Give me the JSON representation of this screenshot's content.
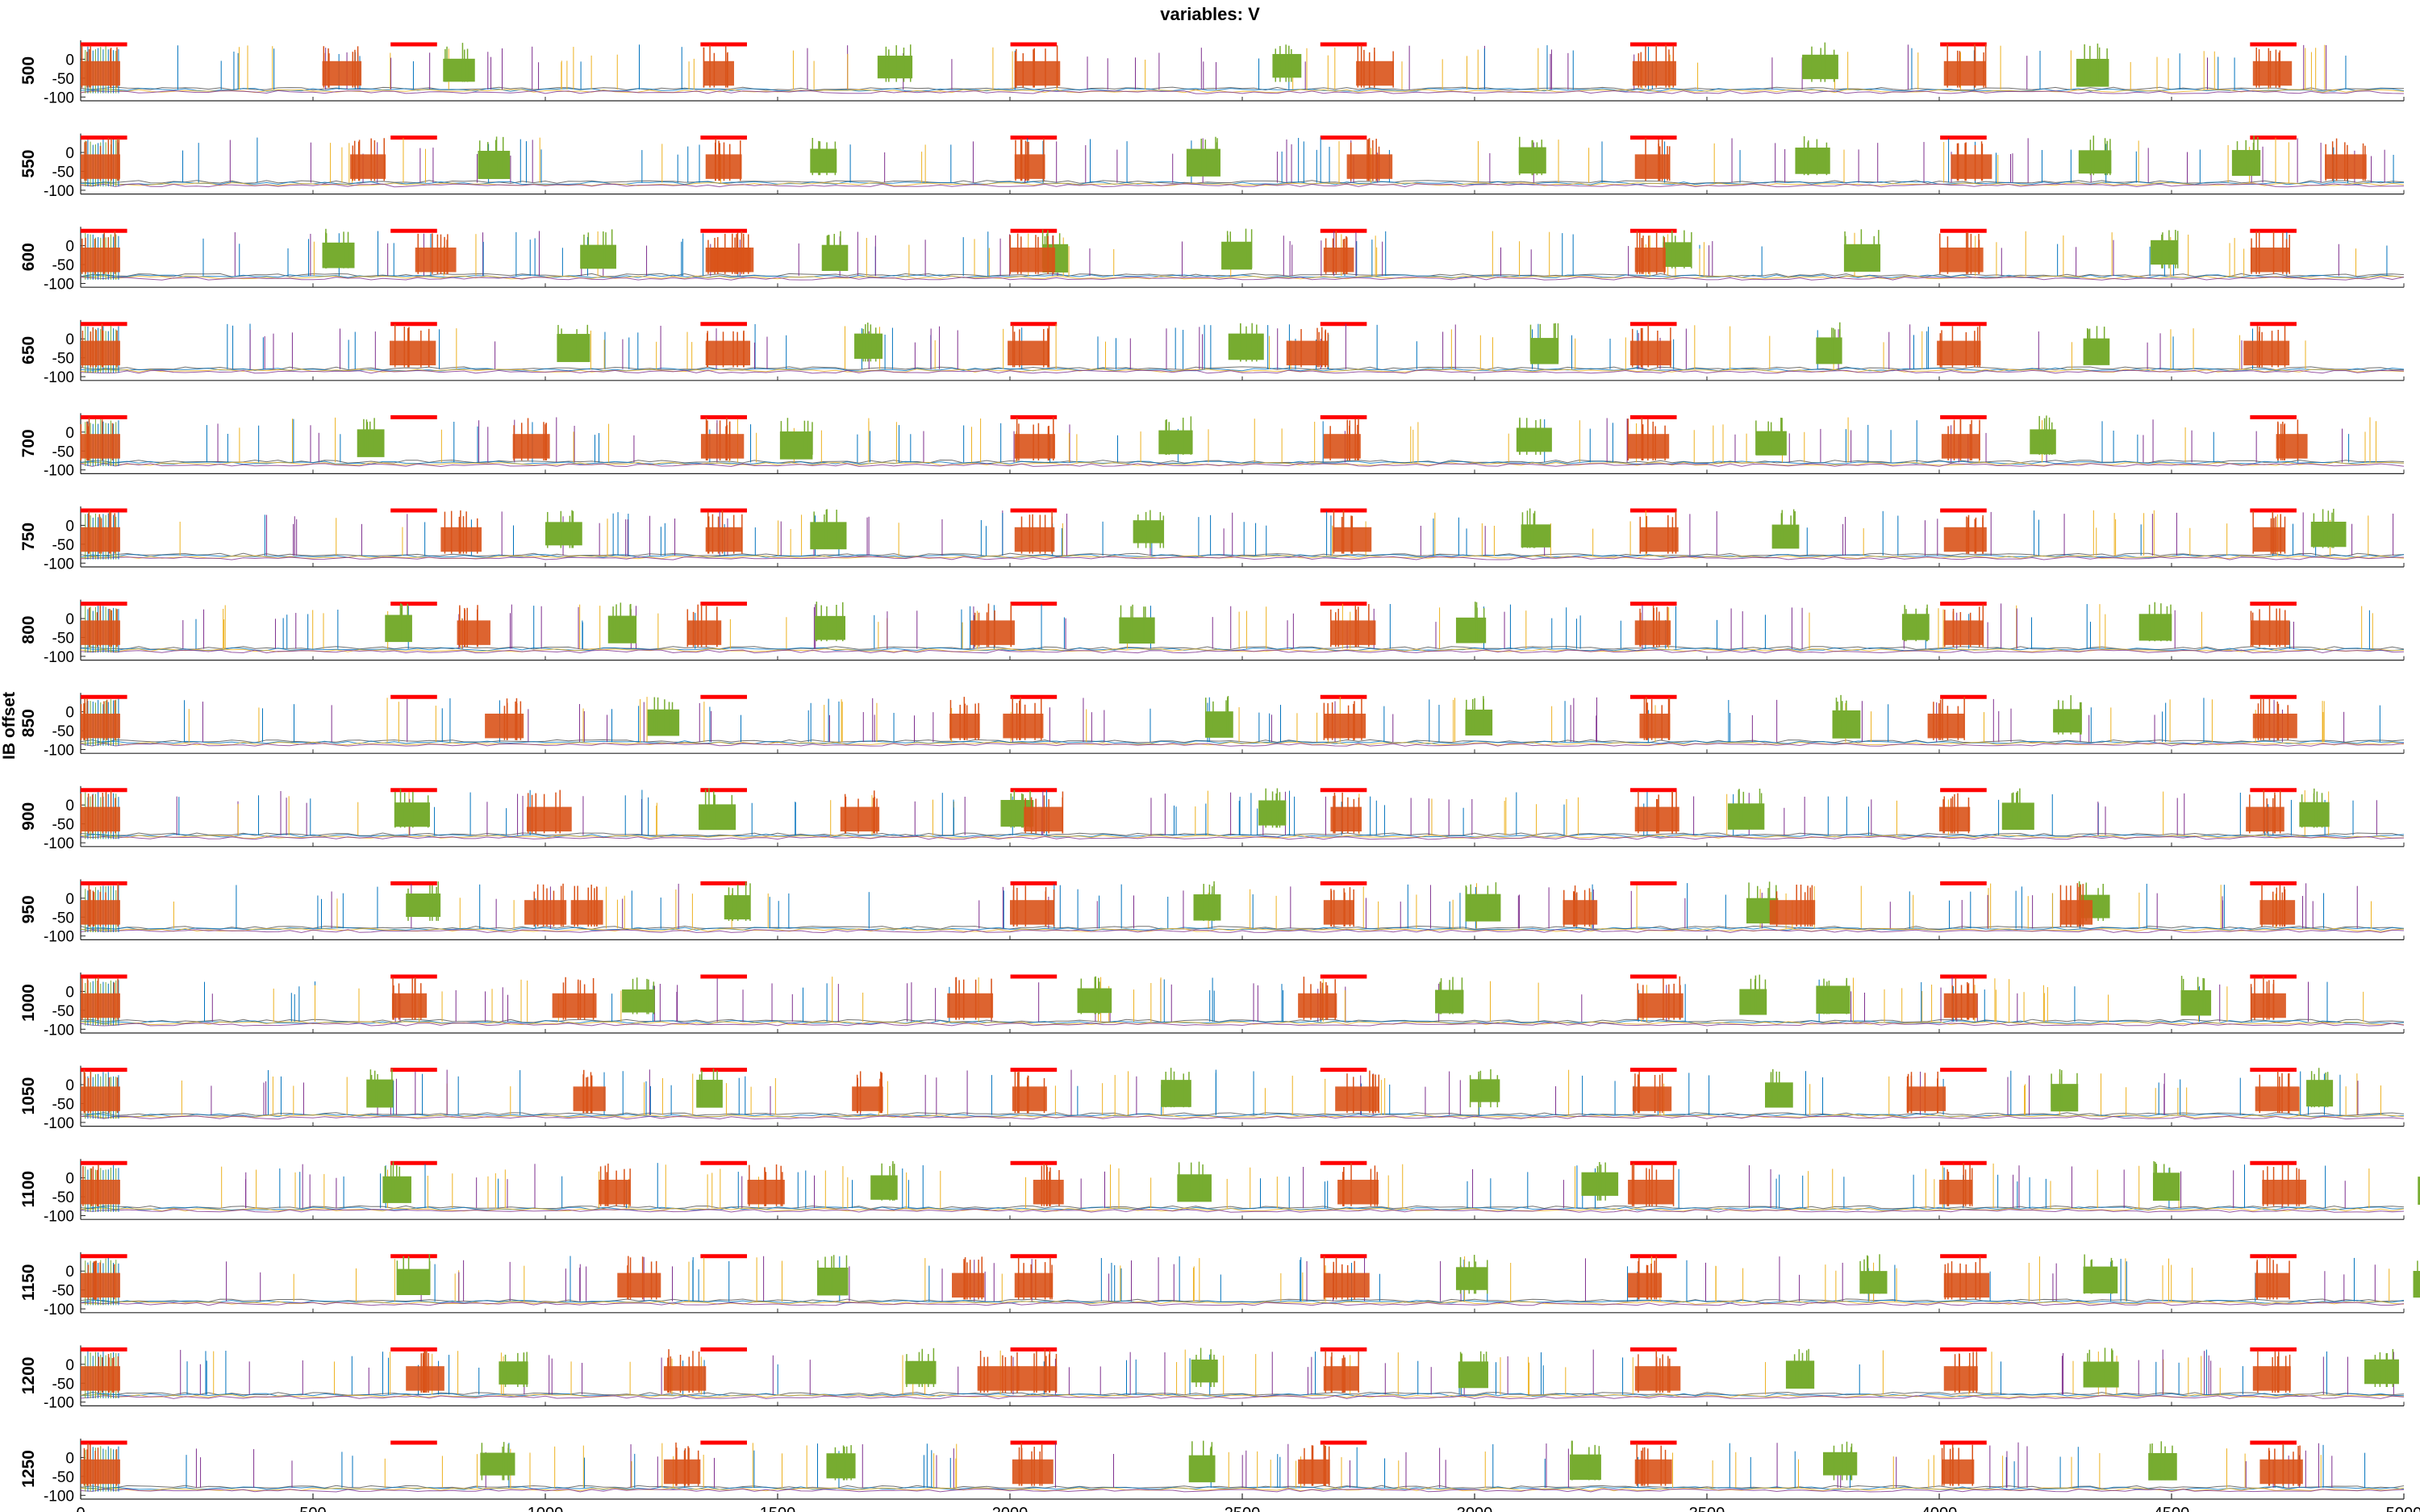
{
  "chart_data": {
    "type": "line",
    "title": "variables: V",
    "ylabel": "IB offset",
    "xlim": [
      0,
      5000
    ],
    "x_ticks": [
      0,
      500,
      1000,
      1500,
      2000,
      2500,
      3000,
      3500,
      4000,
      4500,
      5000
    ],
    "ylim": [
      -110,
      50
    ],
    "y_ticks": [
      0,
      -50,
      -100
    ],
    "grid": false,
    "stim_interval_period": 667,
    "stim_interval_duration": 100,
    "stim_interval_color": "#ff0000",
    "stim_starts": [
      0,
      667,
      1334,
      2001,
      2668,
      3335,
      4002,
      4669
    ],
    "series_colors": {
      "E_burst": "#d95319",
      "I_burst": "#77ac30",
      "spikes_blue": "#0072bd",
      "spikes_yellow": "#edb120",
      "spikes_purple": "#7e2f8e",
      "baseline": "#4d4d4d"
    },
    "panels": [
      {
        "label": "500",
        "red": [
          0,
          520,
          1340,
          2010,
          2745,
          3340,
          4010,
          4675
        ],
        "green": [
          780,
          1715,
          2565,
          3705,
          4295
        ]
      },
      {
        "label": "550",
        "red": [
          0,
          580,
          1345,
          2010,
          2725,
          3345,
          4025,
          4830
        ],
        "green": [
          855,
          1570,
          2380,
          3095,
          3690,
          4300,
          4630
        ]
      },
      {
        "label": "600",
        "red": [
          0,
          720,
          1355,
          1345,
          2000,
          2675,
          3345,
          4000,
          4670
        ],
        "green": [
          520,
          1075,
          1595,
          2070,
          2455,
          3405,
          3795,
          4455
        ]
      },
      {
        "label": "650",
        "red": [
          0,
          665,
          1345,
          1995,
          2595,
          3335,
          3995,
          4655
        ],
        "green": [
          1025,
          1665,
          2470,
          3120,
          3735,
          4310
        ]
      },
      {
        "label": "700",
        "red": [
          0,
          930,
          1335,
          2010,
          2675,
          3330,
          4005,
          4725
        ],
        "green": [
          595,
          1505,
          2320,
          3090,
          3605,
          4195
        ]
      },
      {
        "label": "750",
        "red": [
          0,
          775,
          1345,
          2010,
          2695,
          3355,
          4010,
          4675
        ],
        "green": [
          1000,
          1570,
          2265,
          3100,
          3640,
          4800
        ]
      },
      {
        "label": "800",
        "red": [
          0,
          810,
          1305,
          1915,
          2690,
          3345,
          4010,
          4670
        ],
        "green": [
          655,
          1135,
          1580,
          2235,
          2960,
          3920,
          4430
        ]
      },
      {
        "label": "850",
        "red": [
          0,
          870,
          1985,
          1870,
          2675,
          3355,
          3975,
          4675
        ],
        "green": [
          1220,
          2420,
          2980,
          3770,
          4245
        ]
      },
      {
        "label": "900",
        "red": [
          0,
          960,
          1635,
          2030,
          2690,
          3345,
          4000,
          4660
        ],
        "green": [
          675,
          1330,
          1980,
          2535,
          3545,
          4135,
          4775
        ]
      },
      {
        "label": "950",
        "red": [
          0,
          955,
          1055,
          2000,
          2675,
          3190,
          3635,
          4260,
          4690
        ],
        "green": [
          700,
          1385,
          2395,
          2980,
          3585,
          4300
        ]
      },
      {
        "label": "1000",
        "red": [
          0,
          670,
          1015,
          1865,
          2620,
          3350,
          4010,
          4670
        ],
        "green": [
          1165,
          2145,
          2915,
          3570,
          3735,
          4520
        ]
      },
      {
        "label": "1050",
        "red": [
          0,
          1060,
          1660,
          2005,
          2700,
          3340,
          3930,
          4680
        ],
        "green": [
          615,
          1325,
          2325,
          2990,
          3625,
          4240,
          4790
        ]
      },
      {
        "label": "1100",
        "red": [
          0,
          1115,
          1435,
          2050,
          2705,
          3330,
          4000,
          4695
        ],
        "green": [
          650,
          1700,
          2360,
          3230,
          4460,
          5030
        ]
      },
      {
        "label": "1150",
        "red": [
          0,
          1155,
          1875,
          2010,
          2675,
          3330,
          4010,
          4680
        ],
        "green": [
          680,
          1585,
          2960,
          3830,
          4310,
          5020
        ]
      },
      {
        "label": "1200",
        "red": [
          0,
          700,
          1255,
          1930,
          2015,
          2675,
          3345,
          4010,
          4675
        ],
        "green": [
          900,
          1775,
          2390,
          2965,
          3670,
          4310,
          4915
        ]
      },
      {
        "label": "1250",
        "red": [
          0,
          1255,
          2005,
          2620,
          3345,
          4005,
          4690
        ],
        "green": [
          860,
          1605,
          2385,
          3205,
          3750,
          4450
        ]
      }
    ]
  }
}
